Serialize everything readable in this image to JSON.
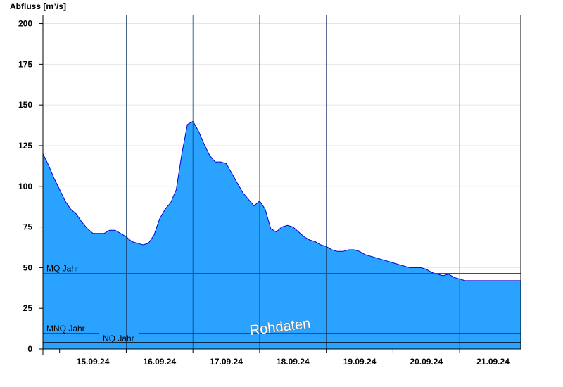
{
  "chart_data": {
    "type": "area",
    "ylabel": "Abfluss [m³/s]",
    "ylim": [
      0,
      205
    ],
    "yticks": [
      "0",
      "25",
      "50",
      "75",
      "100",
      "125",
      "150",
      "175",
      "200"
    ],
    "x_range": [
      "14.09.24 18:00",
      "21.09.24 22:00"
    ],
    "x_tick_labels": [
      "15.09.24",
      "16.09.24",
      "17.09.24",
      "18.09.24",
      "19.09.24",
      "20.09.24",
      "21.09.24"
    ],
    "grid": true,
    "colors": {
      "fill": "#29a3ff",
      "line": "#0000cc",
      "mq_line": "#008000",
      "ref_line": "#000000"
    },
    "reference_lines": [
      {
        "label": "MQ Jahr",
        "value": 46.5
      },
      {
        "label": "MNQ Jahr",
        "value": 9.5
      },
      {
        "label": "NQ Jahr",
        "value": 4
      }
    ],
    "watermark": "Rohdaten",
    "series": [
      {
        "x_hours": [
          0,
          2,
          4,
          6,
          8,
          10,
          12,
          14,
          16,
          18,
          20,
          22,
          24,
          26,
          28,
          30,
          32,
          34,
          36,
          38,
          40,
          42,
          44,
          46,
          48,
          50,
          52,
          54,
          56,
          58,
          60,
          62,
          64,
          66,
          68,
          70,
          72,
          74,
          76,
          78,
          80,
          82,
          84,
          86,
          88,
          90,
          92,
          94,
          96,
          98,
          100,
          102,
          104,
          106,
          108,
          110,
          112,
          114,
          116,
          118,
          120,
          122,
          124,
          126,
          128,
          130,
          132,
          134,
          136,
          138,
          140,
          142,
          144,
          146,
          148,
          150,
          152,
          154,
          156,
          158,
          160,
          162,
          164,
          166,
          168
        ],
        "values": [
          120,
          113,
          105,
          98,
          91,
          86,
          83,
          78,
          74,
          71,
          71,
          71,
          73,
          73,
          71,
          69,
          66,
          65,
          64,
          65,
          70,
          80,
          86,
          90,
          98,
          120,
          138,
          140,
          134,
          126,
          119,
          115,
          115,
          114,
          108,
          102,
          96,
          92,
          88,
          91,
          86,
          74,
          72,
          75,
          76,
          75,
          72,
          69,
          67,
          66,
          64,
          63,
          61,
          60,
          60,
          61,
          61,
          60,
          58,
          57,
          56,
          55,
          54,
          53,
          52,
          51,
          50,
          50,
          50,
          49,
          47,
          46,
          45,
          46,
          44,
          43,
          42,
          42,
          42,
          42,
          42,
          42,
          42,
          42,
          42
        ]
      }
    ]
  }
}
